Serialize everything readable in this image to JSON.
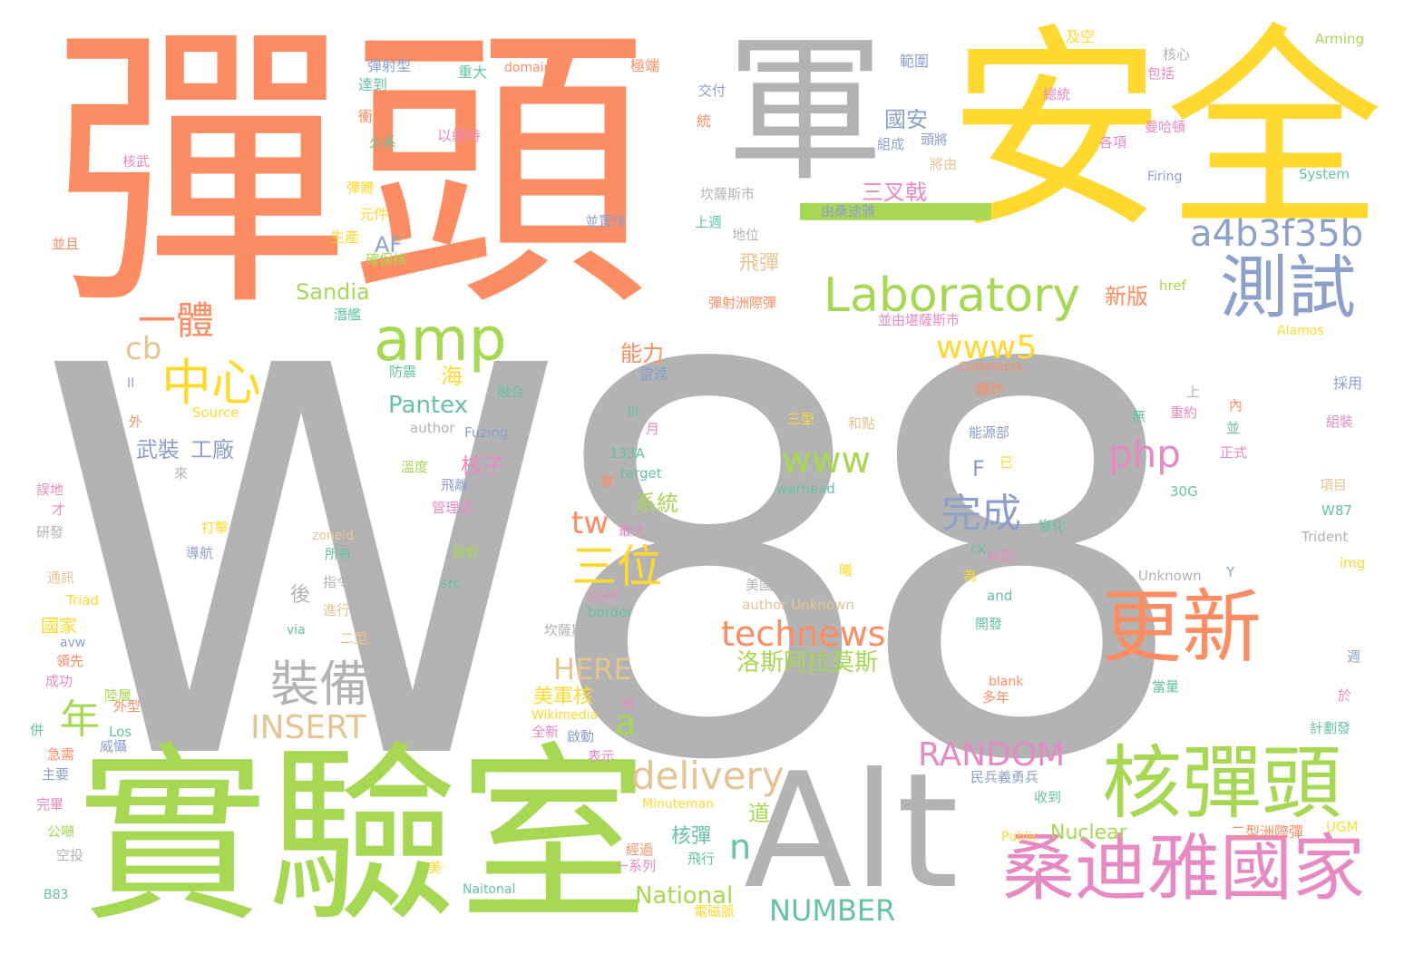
{
  "palette": {
    "orange": "#fc8d62",
    "gray": "#b3b3b3",
    "yellow": "#ffd92f",
    "green": "#a6d854",
    "blue": "#8da0cb",
    "pink": "#e78ac3",
    "teal": "#66c2a5",
    "tan": "#e5c494"
  },
  "words": [
    {
      "text": "W88",
      "color": "gray"
    },
    {
      "text": "彈頭",
      "color": "orange"
    },
    {
      "text": "安全",
      "color": "yellow"
    },
    {
      "text": "軍",
      "color": "gray"
    },
    {
      "text": "一",
      "color": "green"
    },
    {
      "text": "實驗室",
      "color": "green"
    },
    {
      "text": "Alt",
      "color": "gray"
    },
    {
      "text": "核彈頭",
      "color": "green"
    },
    {
      "text": "桑迪雅國家",
      "color": "pink"
    },
    {
      "text": "更新",
      "color": "orange"
    },
    {
      "text": "測試",
      "color": "blue"
    },
    {
      "text": "Laboratory",
      "color": "green"
    },
    {
      "text": "a4b3f35b",
      "color": "blue"
    },
    {
      "text": "amp",
      "color": "green"
    },
    {
      "text": "中心",
      "color": "yellow"
    },
    {
      "text": "一體",
      "color": "orange"
    },
    {
      "text": "cb",
      "color": "tan"
    },
    {
      "text": "www5",
      "color": "yellow"
    },
    {
      "text": "www",
      "color": "green"
    },
    {
      "text": "php",
      "color": "pink"
    },
    {
      "text": "完成",
      "color": "blue"
    },
    {
      "text": "三位",
      "color": "yellow"
    },
    {
      "text": "tw",
      "color": "orange"
    },
    {
      "text": "technews",
      "color": "orange"
    },
    {
      "text": "洛斯阿拉莫斯",
      "color": "green"
    },
    {
      "text": "裝備",
      "color": "gray"
    },
    {
      "text": "年",
      "color": "green"
    },
    {
      "text": "INSERT",
      "color": "tan"
    },
    {
      "text": "HERE",
      "color": "tan"
    },
    {
      "text": "a",
      "color": "green"
    },
    {
      "text": "delivery",
      "color": "tan"
    },
    {
      "text": "RANDOM",
      "color": "pink"
    },
    {
      "text": "NUMBER",
      "color": "teal"
    },
    {
      "text": "National",
      "color": "green"
    },
    {
      "text": "Nuclear",
      "color": "green"
    },
    {
      "text": "n",
      "color": "teal"
    },
    {
      "text": "核彈",
      "color": "teal"
    },
    {
      "text": "Pantex",
      "color": "teal"
    },
    {
      "text": "Sandia",
      "color": "green"
    },
    {
      "text": "AF",
      "color": "blue"
    },
    {
      "text": "三叉戟",
      "color": "pink"
    },
    {
      "text": "國安",
      "color": "blue"
    },
    {
      "text": "新版",
      "color": "orange"
    },
    {
      "text": "飛彈",
      "color": "tan"
    },
    {
      "text": "能力",
      "color": "orange"
    },
    {
      "text": "武裝",
      "color": "blue"
    },
    {
      "text": "工廠",
      "color": "blue"
    },
    {
      "text": "核子",
      "color": "pink"
    },
    {
      "text": "系統",
      "color": "green"
    },
    {
      "text": "海",
      "color": "yellow"
    },
    {
      "text": "美軍核",
      "color": "yellow"
    },
    {
      "text": "F",
      "color": "blue"
    },
    {
      "text": "道",
      "color": "green"
    },
    {
      "text": "二型洲際彈",
      "color": "orange"
    },
    {
      "text": "洲際彈",
      "color": "pink"
    },
    {
      "text": "Arming",
      "color": "green"
    },
    {
      "text": "System",
      "color": "teal"
    },
    {
      "text": "Firing",
      "color": "blue"
    },
    {
      "text": "Alamos",
      "color": "yellow"
    },
    {
      "text": "href",
      "color": "green"
    },
    {
      "text": "Commons",
      "color": "orange"
    },
    {
      "text": "Source",
      "color": "yellow"
    },
    {
      "text": "author",
      "color": "gray"
    },
    {
      "text": "Fuzing",
      "color": "blue"
    },
    {
      "text": "133A",
      "color": "teal"
    },
    {
      "text": "target",
      "color": "teal"
    },
    {
      "text": "warhead",
      "color": "teal"
    },
    {
      "text": "30G",
      "color": "teal"
    },
    {
      "text": "W87",
      "color": "teal"
    },
    {
      "text": "Trident",
      "color": "gray"
    },
    {
      "text": "img",
      "color": "yellow"
    },
    {
      "text": "Unknown",
      "color": "gray"
    },
    {
      "text": "author Unknown",
      "color": "tan"
    },
    {
      "text": "Y",
      "color": "blue"
    },
    {
      "text": "and",
      "color": "teal"
    },
    {
      "text": "ck",
      "color": "teal"
    },
    {
      "text": "zoneid",
      "color": "tan"
    },
    {
      "text": "src",
      "color": "teal"
    },
    {
      "text": "LGM",
      "color": "pink"
    },
    {
      "text": "border",
      "color": "teal"
    },
    {
      "text": "via",
      "color": "teal"
    },
    {
      "text": "avw",
      "color": "blue"
    },
    {
      "text": "Triad",
      "color": "yellow"
    },
    {
      "text": "Wikimedia",
      "color": "yellow"
    },
    {
      "text": "Los",
      "color": "teal"
    },
    {
      "text": "Minuteman",
      "color": "yellow"
    },
    {
      "text": "Public",
      "color": "yellow"
    },
    {
      "text": "Naitonal",
      "color": "teal"
    },
    {
      "text": "UGM",
      "color": "yellow"
    },
    {
      "text": "blank",
      "color": "orange"
    },
    {
      "text": "B83",
      "color": "teal"
    },
    {
      "text": "domain",
      "color": "orange"
    },
    {
      "text": "II",
      "color": "blue"
    },
    {
      "text": "III",
      "color": "teal"
    },
    {
      "text": "彈射型",
      "color": "blue"
    },
    {
      "text": "重大",
      "color": "teal"
    },
    {
      "text": "極端",
      "color": "orange"
    },
    {
      "text": "及空",
      "color": "yellow"
    },
    {
      "text": "範圍",
      "color": "blue"
    },
    {
      "text": "核心",
      "color": "gray"
    },
    {
      "text": "包括",
      "color": "pink"
    },
    {
      "text": "達到",
      "color": "teal"
    },
    {
      "text": "總統",
      "color": "pink"
    },
    {
      "text": "交付",
      "color": "blue"
    },
    {
      "text": "衝擊",
      "color": "orange"
    },
    {
      "text": "以維持",
      "color": "pink"
    },
    {
      "text": "曼哈頓",
      "color": "pink"
    },
    {
      "text": "火系",
      "color": "teal"
    },
    {
      "text": "統",
      "color": "orange"
    },
    {
      "text": "組成",
      "color": "blue"
    },
    {
      "text": "頭將",
      "color": "blue"
    },
    {
      "text": "各項",
      "color": "pink"
    },
    {
      "text": "核武",
      "color": "pink"
    },
    {
      "text": "將由",
      "color": "tan"
    },
    {
      "text": "坎薩斯市",
      "color": "gray"
    },
    {
      "text": "由桑迪雅",
      "color": "blue"
    },
    {
      "text": "彈體",
      "color": "yellow"
    },
    {
      "text": "元件",
      "color": "yellow"
    },
    {
      "text": "並置快",
      "color": "blue"
    },
    {
      "text": "上週",
      "color": "teal"
    },
    {
      "text": "地位",
      "color": "gray"
    },
    {
      "text": "生產",
      "color": "yellow"
    },
    {
      "text": "確保核",
      "color": "green"
    },
    {
      "text": "並且",
      "color": "orange"
    },
    {
      "text": "潛艦",
      "color": "teal"
    },
    {
      "text": "彈射洲際彈",
      "color": "orange"
    },
    {
      "text": "並由堪薩斯市",
      "color": "pink"
    },
    {
      "text": "防震",
      "color": "teal"
    },
    {
      "text": "融合",
      "color": "teal"
    },
    {
      "text": "雷達",
      "color": "blue"
    },
    {
      "text": "爆炸",
      "color": "orange"
    },
    {
      "text": "採用",
      "color": "blue"
    },
    {
      "text": "上",
      "color": "gray"
    },
    {
      "text": "外",
      "color": "orange"
    },
    {
      "text": "三型",
      "color": "yellow"
    },
    {
      "text": "和點",
      "color": "tan"
    },
    {
      "text": "能源部",
      "color": "blue"
    },
    {
      "text": "無",
      "color": "teal"
    },
    {
      "text": "重約",
      "color": "pink"
    },
    {
      "text": "內",
      "color": "orange"
    },
    {
      "text": "並",
      "color": "teal"
    },
    {
      "text": "組裝",
      "color": "pink"
    },
    {
      "text": "正式",
      "color": "pink"
    },
    {
      "text": "已",
      "color": "yellow"
    },
    {
      "text": "月",
      "color": "pink"
    },
    {
      "text": "來",
      "color": "gray"
    },
    {
      "text": "溫度",
      "color": "green"
    },
    {
      "text": "飛離",
      "color": "blue"
    },
    {
      "text": "管理局",
      "color": "pink"
    },
    {
      "text": "會",
      "color": "orange"
    },
    {
      "text": "項目",
      "color": "tan"
    },
    {
      "text": "誤地",
      "color": "pink"
    },
    {
      "text": "才",
      "color": "pink"
    },
    {
      "text": "研發",
      "color": "gray"
    },
    {
      "text": "最大",
      "color": "pink"
    },
    {
      "text": "打擊",
      "color": "yellow"
    },
    {
      "text": "導航",
      "color": "blue"
    },
    {
      "text": "所有",
      "color": "teal"
    },
    {
      "text": "發射",
      "color": "green"
    },
    {
      "text": "變化",
      "color": "teal"
    },
    {
      "text": "共同",
      "color": "pink"
    },
    {
      "text": "為",
      "color": "yellow"
    },
    {
      "text": "通訊",
      "color": "tan"
    },
    {
      "text": "指令",
      "color": "gray"
    },
    {
      "text": "後",
      "color": "gray"
    },
    {
      "text": "美國核",
      "color": "gray"
    },
    {
      "text": "曦",
      "color": "yellow"
    },
    {
      "text": "進行",
      "color": "tan"
    },
    {
      "text": "國家",
      "color": "yellow"
    },
    {
      "text": "坎薩斯國安",
      "color": "gray"
    },
    {
      "text": "開發",
      "color": "teal"
    },
    {
      "text": "二型",
      "color": "tan"
    },
    {
      "text": "領先",
      "color": "orange"
    },
    {
      "text": "成功",
      "color": "pink"
    },
    {
      "text": "時",
      "color": "pink"
    },
    {
      "text": "大樓",
      "color": "gray"
    },
    {
      "text": "週",
      "color": "blue"
    },
    {
      "text": "多年",
      "color": "orange"
    },
    {
      "text": "當量",
      "color": "teal"
    },
    {
      "text": "於",
      "color": "pink"
    },
    {
      "text": "外型",
      "color": "orange"
    },
    {
      "text": "計劃發",
      "color": "teal"
    },
    {
      "text": "併",
      "color": "teal"
    },
    {
      "text": "陸層",
      "color": "green"
    },
    {
      "text": "全新",
      "color": "pink"
    },
    {
      "text": "啟動",
      "color": "blue"
    },
    {
      "text": "掉落",
      "color": "gray"
    },
    {
      "text": "威懾",
      "color": "blue"
    },
    {
      "text": "急需",
      "color": "orange"
    },
    {
      "text": "主要",
      "color": "blue"
    },
    {
      "text": "表示",
      "color": "pink"
    },
    {
      "text": "民兵義勇兵",
      "color": "blue"
    },
    {
      "text": "收到",
      "color": "teal"
    },
    {
      "text": "完畢",
      "color": "pink"
    },
    {
      "text": "公噸",
      "color": "green"
    },
    {
      "text": "空投",
      "color": "gray"
    },
    {
      "text": "經過",
      "color": "orange"
    },
    {
      "text": "一系列",
      "color": "pink"
    },
    {
      "text": "飛行",
      "color": "teal"
    },
    {
      "text": "美",
      "color": "yellow"
    },
    {
      "text": "電磁脈",
      "color": "yellow"
    }
  ]
}
